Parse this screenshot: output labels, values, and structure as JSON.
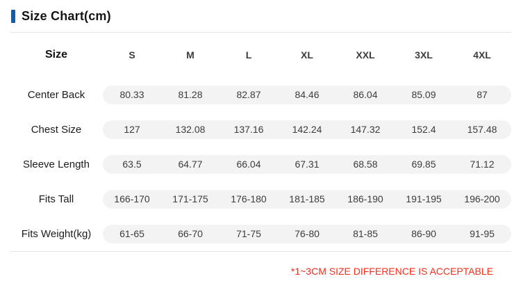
{
  "header": {
    "title": "Size Chart(cm)",
    "accent_color": "#1a5c9e"
  },
  "table": {
    "size_label": "Size",
    "columns": [
      "S",
      "M",
      "L",
      "XL",
      "XXL",
      "3XL",
      "4XL"
    ],
    "rows": [
      {
        "label": "Center Back",
        "values": [
          "80.33",
          "81.28",
          "82.87",
          "84.46",
          "86.04",
          "85.09",
          "87"
        ]
      },
      {
        "label": "Chest Size",
        "values": [
          "127",
          "132.08",
          "137.16",
          "142.24",
          "147.32",
          "152.4",
          "157.48"
        ]
      },
      {
        "label": "Sleeve Length",
        "values": [
          "63.5",
          "64.77",
          "66.04",
          "67.31",
          "68.58",
          "69.85",
          "71.12"
        ]
      },
      {
        "label": "Fits Tall",
        "values": [
          "166-170",
          "171-175",
          "176-180",
          "181-185",
          "186-190",
          "191-195",
          "196-200"
        ]
      },
      {
        "label": "Fits Weight(kg)",
        "values": [
          "61-65",
          "66-70",
          "71-75",
          "76-80",
          "81-85",
          "86-90",
          "91-95"
        ]
      }
    ]
  },
  "footer": {
    "note": "*1~3CM SIZE DIFFERENCE IS ACCEPTABLE",
    "note_color": "#fa2c19"
  }
}
